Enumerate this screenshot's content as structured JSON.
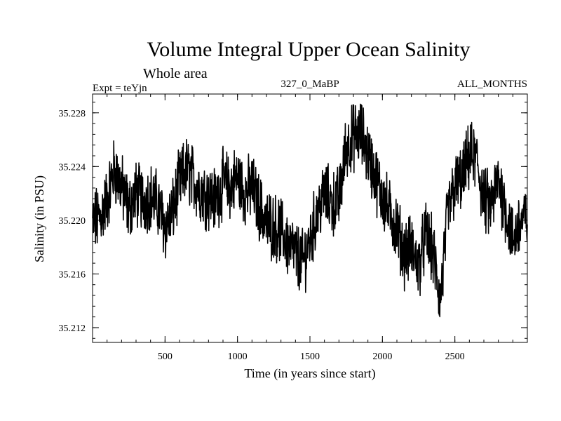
{
  "chart_data": {
    "type": "line",
    "title": "Volume Integral Upper Ocean Salinity",
    "subtitle": "Whole area",
    "expt_label": "Expt = teYjn",
    "run_label": "327_0_MaBP",
    "period_label": "ALL_MONTHS",
    "xlabel": "Time (in years since start)",
    "ylabel": "Salinity (in PSU)",
    "xlim": [
      0,
      3000
    ],
    "ylim": [
      35.2109,
      35.2294
    ],
    "x_ticks": [
      500,
      1000,
      1500,
      2000,
      2500
    ],
    "y_ticks": [
      35.212,
      35.216,
      35.22,
      35.224,
      35.228
    ],
    "y_tick_labels": [
      "35.212",
      "35.216",
      "35.220",
      "35.224",
      "35.228"
    ],
    "grid": false,
    "series": [
      {
        "name": "salinity",
        "color": "#000000",
        "x": [
          0,
          50,
          100,
          150,
          200,
          250,
          300,
          350,
          400,
          450,
          500,
          550,
          600,
          650,
          700,
          750,
          800,
          850,
          900,
          950,
          1000,
          1050,
          1100,
          1150,
          1200,
          1250,
          1300,
          1350,
          1400,
          1450,
          1500,
          1550,
          1600,
          1650,
          1700,
          1750,
          1800,
          1850,
          1900,
          1950,
          2000,
          2050,
          2100,
          2150,
          2200,
          2250,
          2300,
          2350,
          2400,
          2450,
          2500,
          2550,
          2600,
          2650,
          2700,
          2750,
          2800,
          2850,
          2900,
          2950,
          3000
        ],
        "y": [
          35.2198,
          35.2202,
          35.2215,
          35.2238,
          35.2225,
          35.2208,
          35.222,
          35.2215,
          35.2218,
          35.2212,
          35.2195,
          35.2205,
          35.2228,
          35.2238,
          35.223,
          35.2222,
          35.2218,
          35.2215,
          35.2228,
          35.2225,
          35.2232,
          35.222,
          35.2225,
          35.221,
          35.2198,
          35.2195,
          35.2192,
          35.2182,
          35.2175,
          35.2168,
          35.2185,
          35.2205,
          35.222,
          35.2212,
          35.2215,
          35.2255,
          35.2262,
          35.2265,
          35.225,
          35.2232,
          35.2218,
          35.2205,
          35.2195,
          35.2175,
          35.218,
          35.2165,
          35.219,
          35.2175,
          35.214,
          35.2205,
          35.2225,
          35.223,
          35.2248,
          35.2245,
          35.2215,
          35.221,
          35.223,
          35.2208,
          35.2185,
          35.2198,
          35.2202
        ]
      }
    ]
  }
}
